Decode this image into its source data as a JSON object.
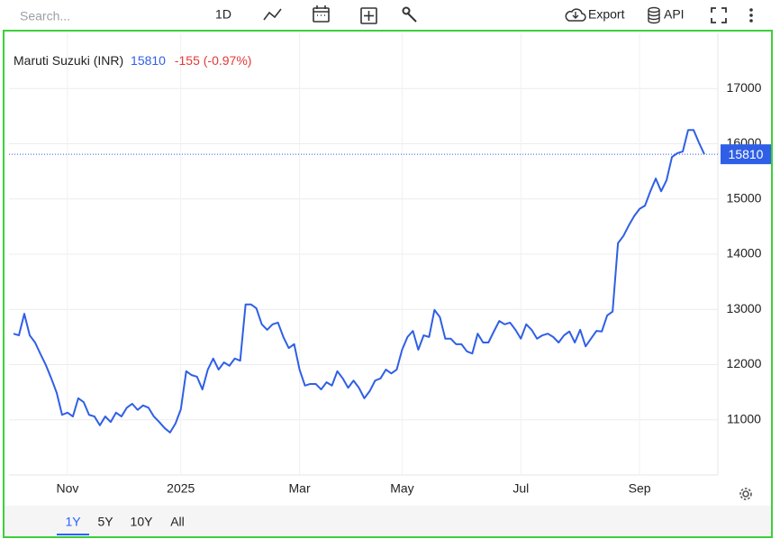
{
  "toolbar": {
    "search_placeholder": "Search...",
    "interval": "1D",
    "export": "Export",
    "api": "API"
  },
  "range_selector": {
    "buttons": [
      "1Y",
      "5Y",
      "10Y",
      "All"
    ],
    "active": 0
  },
  "chart_data": {
    "type": "line",
    "change": "-155 (-0.97%)",
    "categories": [
      null,
      null,
      null,
      null,
      null,
      null,
      null,
      null,
      null,
      null,
      "Nov",
      null,
      null,
      null,
      null,
      null,
      null,
      null,
      null,
      null,
      null,
      null,
      null,
      null,
      null,
      null,
      null,
      null,
      null,
      null,
      null,
      "2025",
      null,
      null,
      null,
      null,
      null,
      null,
      null,
      null,
      null,
      null,
      null,
      null,
      null,
      null,
      null,
      null,
      null,
      null,
      null,
      null,
      null,
      "Mar",
      null,
      null,
      null,
      null,
      null,
      null,
      null,
      null,
      null,
      null,
      null,
      null,
      null,
      null,
      null,
      null,
      null,
      null,
      "May",
      null,
      null,
      null,
      null,
      null,
      null,
      null,
      null,
      null,
      null,
      null,
      null,
      null,
      null,
      null,
      null,
      null,
      null,
      null,
      null,
      null,
      "Jul",
      null,
      null,
      null,
      null,
      null,
      null,
      null,
      null,
      null,
      null,
      null,
      null,
      null,
      null,
      null,
      null,
      null,
      null,
      null,
      null,
      null,
      "Sep",
      null,
      null,
      null,
      null,
      null,
      null,
      null,
      null,
      null,
      null,
      null,
      null
    ],
    "series": [
      {
        "name": "Maruti Suzuki (INR)",
        "color": "#2f5fe6",
        "values": [
          12560,
          12530,
          12920,
          12530,
          12400,
          12190,
          11990,
          11750,
          11490,
          11090,
          11130,
          11060,
          11390,
          11320,
          11090,
          11060,
          10900,
          11060,
          10960,
          11130,
          11060,
          11220,
          11290,
          11180,
          11260,
          11220,
          11060,
          10960,
          10850,
          10770,
          10930,
          11190,
          11880,
          11810,
          11780,
          11550,
          11910,
          12110,
          11910,
          12040,
          11980,
          12110,
          12070,
          13090,
          13090,
          13020,
          12730,
          12630,
          12730,
          12760,
          12500,
          12300,
          12370,
          11910,
          11620,
          11650,
          11650,
          11550,
          11680,
          11620,
          11880,
          11750,
          11580,
          11710,
          11580,
          11390,
          11520,
          11710,
          11750,
          11910,
          11840,
          11910,
          12270,
          12500,
          12610,
          12270,
          12530,
          12500,
          12990,
          12860,
          12470,
          12470,
          12370,
          12370,
          12240,
          12200,
          12560,
          12400,
          12400,
          12600,
          12790,
          12730,
          12760,
          12630,
          12470,
          12730,
          12630,
          12470,
          12530,
          12560,
          12500,
          12400,
          12530,
          12600,
          12400,
          12630,
          12330,
          12470,
          12610,
          12600,
          12890,
          12960,
          14200,
          14330,
          14520,
          14690,
          14820,
          14880,
          15140,
          15370,
          15140,
          15340,
          15760,
          15830,
          15860,
          16250,
          16250,
          16020,
          15810
        ]
      }
    ],
    "change_color": "#e53935",
    "ylim": [
      10000,
      18000
    ],
    "yticks": [
      11000,
      12000,
      13000,
      14000,
      15000,
      16000,
      17000
    ],
    "grid": true
  }
}
